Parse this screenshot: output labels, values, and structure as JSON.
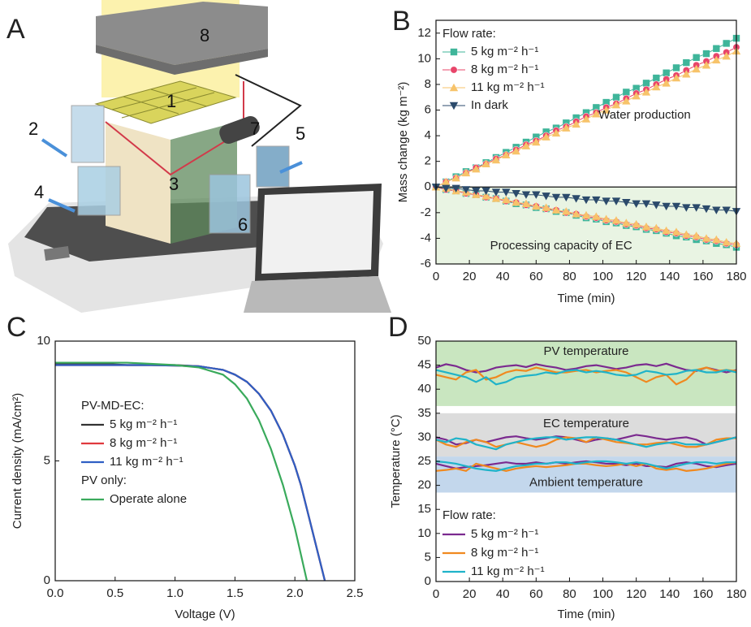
{
  "illustration": {
    "panel_label": "A",
    "callouts": [
      "1",
      "2",
      "3",
      "4",
      "5",
      "6",
      "7",
      "8"
    ]
  },
  "chart_data": [
    {
      "type": "line",
      "panel_label": "B",
      "x_label": "Time (min)",
      "y_label": "Mass change (kg m⁻²)",
      "xlim": [
        0,
        180
      ],
      "ylim": [
        -6,
        13
      ],
      "xticks": [
        0,
        20,
        40,
        60,
        80,
        100,
        120,
        140,
        160,
        180
      ],
      "yticks": [
        -6,
        -4,
        -2,
        0,
        2,
        4,
        6,
        8,
        10,
        12
      ],
      "zero_line": true,
      "negative_fill": "#e9f4e3",
      "legend_title": "Flow rate:",
      "annotations": [
        {
          "text": "Water production",
          "x": 125,
          "y": 5.6
        },
        {
          "text": "Processing capacity of EC",
          "x": 75,
          "y": -4.6
        }
      ],
      "x": [
        0,
        6,
        12,
        18,
        24,
        30,
        36,
        42,
        48,
        54,
        60,
        66,
        72,
        78,
        84,
        90,
        96,
        102,
        108,
        114,
        120,
        126,
        132,
        138,
        144,
        150,
        156,
        162,
        168,
        174,
        180
      ],
      "series": [
        {
          "name": "5 kg m⁻² h⁻¹",
          "color": "#3fb59a",
          "marker": "square",
          "values": [
            0,
            0.4,
            0.8,
            1.2,
            1.5,
            1.9,
            2.3,
            2.7,
            3.1,
            3.5,
            3.9,
            4.3,
            4.6,
            5.0,
            5.4,
            5.8,
            6.2,
            6.6,
            7.0,
            7.4,
            7.7,
            8.1,
            8.5,
            8.9,
            9.3,
            9.7,
            10.1,
            10.4,
            10.8,
            11.2,
            11.6
          ],
          "values_ec": [
            0,
            -0.2,
            -0.3,
            -0.5,
            -0.6,
            -0.8,
            -0.9,
            -1.1,
            -1.3,
            -1.4,
            -1.6,
            -1.7,
            -1.9,
            -2.0,
            -2.2,
            -2.4,
            -2.5,
            -2.7,
            -2.8,
            -3.0,
            -3.1,
            -3.3,
            -3.4,
            -3.6,
            -3.8,
            -3.9,
            -4.1,
            -4.2,
            -4.4,
            -4.5,
            -4.7
          ]
        },
        {
          "name": "8 kg m⁻² h⁻¹",
          "color": "#e8456a",
          "marker": "circle",
          "values": [
            0,
            0.4,
            0.7,
            1.1,
            1.5,
            1.8,
            2.2,
            2.5,
            2.9,
            3.3,
            3.6,
            4.0,
            4.4,
            4.7,
            5.1,
            5.5,
            5.8,
            6.2,
            6.5,
            6.9,
            7.3,
            7.6,
            8.0,
            8.4,
            8.7,
            9.1,
            9.5,
            9.8,
            10.2,
            10.5,
            10.9
          ],
          "values_ec": [
            0,
            -0.2,
            -0.3,
            -0.5,
            -0.6,
            -0.8,
            -0.9,
            -1.1,
            -1.2,
            -1.4,
            -1.5,
            -1.7,
            -1.8,
            -2.0,
            -2.1,
            -2.3,
            -2.4,
            -2.6,
            -2.7,
            -2.9,
            -3.0,
            -3.2,
            -3.3,
            -3.5,
            -3.6,
            -3.8,
            -3.9,
            -4.1,
            -4.2,
            -4.4,
            -4.5
          ]
        },
        {
          "name": "11 kg m⁻² h⁻¹",
          "color": "#f7c36a",
          "marker": "triangle-up",
          "values": [
            0,
            0.4,
            0.7,
            1.1,
            1.4,
            1.8,
            2.1,
            2.5,
            2.8,
            3.2,
            3.5,
            3.9,
            4.2,
            4.6,
            4.9,
            5.3,
            5.7,
            6.0,
            6.4,
            6.7,
            7.1,
            7.4,
            7.8,
            8.1,
            8.5,
            8.8,
            9.2,
            9.5,
            9.9,
            10.2,
            10.6
          ],
          "values_ec": [
            0,
            -0.1,
            -0.3,
            -0.4,
            -0.6,
            -0.7,
            -0.9,
            -1.0,
            -1.2,
            -1.3,
            -1.5,
            -1.6,
            -1.8,
            -1.9,
            -2.1,
            -2.2,
            -2.3,
            -2.5,
            -2.6,
            -2.8,
            -2.9,
            -3.1,
            -3.2,
            -3.4,
            -3.5,
            -3.7,
            -3.8,
            -4.0,
            -4.1,
            -4.3,
            -4.4
          ]
        },
        {
          "name": "In dark",
          "color": "#2b4a6b",
          "marker": "triangle-down",
          "values_ec": [
            0,
            -0.1,
            -0.1,
            -0.2,
            -0.3,
            -0.3,
            -0.4,
            -0.4,
            -0.5,
            -0.6,
            -0.6,
            -0.7,
            -0.8,
            -0.8,
            -0.9,
            -1.0,
            -1.0,
            -1.1,
            -1.1,
            -1.2,
            -1.3,
            -1.3,
            -1.4,
            -1.5,
            -1.5,
            -1.6,
            -1.6,
            -1.7,
            -1.8,
            -1.8,
            -1.9
          ]
        }
      ]
    },
    {
      "type": "line",
      "panel_label": "C",
      "x_label": "Voltage (V)",
      "y_label": "Current density (mA/cm²)",
      "xlim": [
        0,
        2.5
      ],
      "ylim": [
        0,
        10
      ],
      "xticks": [
        {
          "value": 0,
          "label": "0.0"
        },
        0.5,
        {
          "value": 1,
          "label": "1.0"
        },
        1.5,
        {
          "value": 2,
          "label": "2.0"
        },
        2.5
      ],
      "yticks": [
        0,
        5,
        10
      ],
      "x": [
        0,
        0.2,
        0.4,
        0.6,
        0.8,
        1.0,
        1.2,
        1.4,
        1.5,
        1.6,
        1.7,
        1.8,
        1.9,
        2.0,
        2.05,
        2.1,
        2.15,
        2.2,
        2.25
      ],
      "series_groups": [
        {
          "title": "PV-MD-EC:",
          "series": [
            {
              "name": "5 kg m⁻² h⁻¹",
              "color": "#333333",
              "values": [
                9.05,
                9.05,
                9.05,
                9.0,
                9.0,
                9.0,
                8.95,
                8.8,
                8.6,
                8.3,
                7.8,
                7.1,
                6.1,
                4.8,
                4.0,
                3.0,
                2.0,
                1.0,
                0
              ]
            },
            {
              "name": "8 kg m⁻² h⁻¹",
              "color": "#e0393e",
              "values": [
                9.0,
                9.0,
                9.0,
                9.0,
                9.0,
                8.98,
                8.95,
                8.8,
                8.6,
                8.3,
                7.8,
                7.1,
                6.1,
                4.8,
                4.0,
                3.0,
                2.0,
                1.0,
                0
              ]
            },
            {
              "name": "11 kg m⁻² h⁻¹",
              "color": "#2f5fc4",
              "values": [
                9.0,
                9.0,
                9.0,
                9.0,
                9.0,
                8.98,
                8.95,
                8.8,
                8.6,
                8.3,
                7.8,
                7.1,
                6.1,
                4.8,
                4.0,
                3.0,
                2.0,
                1.0,
                0
              ]
            }
          ]
        },
        {
          "title": "PV only:",
          "series": [
            {
              "name": "Operate alone",
              "color": "#3aaa5c",
              "values": [
                9.1,
                9.1,
                9.1,
                9.1,
                9.05,
                9.0,
                8.9,
                8.6,
                8.2,
                7.6,
                6.7,
                5.5,
                4.0,
                2.2,
                1.1,
                0,
                null,
                null,
                null
              ]
            }
          ]
        }
      ]
    },
    {
      "type": "line",
      "panel_label": "D",
      "x_label": "Time (min)",
      "y_label": "Temperature (°C)",
      "xlim": [
        0,
        180
      ],
      "ylim": [
        0,
        50
      ],
      "xticks": [
        0,
        20,
        40,
        60,
        80,
        100,
        120,
        140,
        160,
        180
      ],
      "yticks": [
        0,
        5,
        10,
        15,
        20,
        25,
        30,
        35,
        40,
        45,
        50
      ],
      "legend_title": "Flow rate:",
      "bands": [
        {
          "label": "PV temperature",
          "range": [
            36.5,
            50
          ],
          "color": "#c9e6c0"
        },
        {
          "label": "EC temperature",
          "range": [
            26,
            35
          ],
          "color": "#dcdcdc"
        },
        {
          "label": "Ambient temperature",
          "range": [
            18.5,
            26
          ],
          "color": "#c3d7ec"
        }
      ],
      "x": [
        0,
        6,
        12,
        18,
        24,
        30,
        36,
        42,
        48,
        54,
        60,
        66,
        72,
        78,
        84,
        90,
        96,
        102,
        108,
        114,
        120,
        126,
        132,
        138,
        144,
        150,
        156,
        162,
        168,
        174,
        180
      ],
      "series": [
        {
          "name": "5 kg m⁻² h⁻¹",
          "color": "#7b2a8f",
          "values_pv": [
            44.5,
            45.2,
            44.8,
            44.0,
            43.5,
            43.8,
            44.5,
            44.8,
            45.0,
            44.6,
            45.2,
            44.8,
            44.5,
            44.0,
            44.3,
            44.8,
            45.0,
            44.6,
            44.2,
            44.5,
            45.0,
            45.2,
            44.8,
            45.3,
            44.6,
            44.0,
            43.8,
            44.5,
            44.0,
            43.5,
            44.0
          ],
          "values_ec": [
            30.0,
            29.5,
            28.5,
            28.8,
            29.5,
            29.0,
            29.5,
            30.0,
            30.2,
            29.8,
            29.5,
            29.8,
            30.2,
            30.0,
            29.5,
            29.0,
            29.5,
            29.8,
            29.5,
            30.0,
            30.5,
            30.2,
            29.8,
            29.5,
            29.8,
            30.0,
            29.5,
            28.5,
            29.0,
            29.5,
            30.0
          ],
          "values_ambient": [
            24.5,
            24.0,
            23.5,
            23.8,
            24.0,
            24.2,
            24.5,
            24.8,
            24.5,
            24.5,
            24.8,
            24.5,
            24.8,
            24.5,
            24.8,
            25.0,
            24.8,
            24.5,
            24.5,
            24.2,
            24.5,
            24.0,
            24.0,
            23.8,
            24.5,
            24.8,
            24.5,
            24.0,
            23.8,
            24.2,
            24.5
          ]
        },
        {
          "name": "8 kg m⁻² h⁻¹",
          "color": "#f0891f",
          "values_pv": [
            43.0,
            42.5,
            42.0,
            43.5,
            44.0,
            42.0,
            42.5,
            43.5,
            44.0,
            43.8,
            44.5,
            44.0,
            43.5,
            43.5,
            43.8,
            44.0,
            43.5,
            43.8,
            44.0,
            43.5,
            42.5,
            41.5,
            42.5,
            43.0,
            41.0,
            42.0,
            44.0,
            44.5,
            43.8,
            44.0,
            43.8
          ],
          "values_ec": [
            29.5,
            28.5,
            28.0,
            29.0,
            29.5,
            29.0,
            28.0,
            28.5,
            29.0,
            28.5,
            28.0,
            28.5,
            29.5,
            30.0,
            29.8,
            29.0,
            30.0,
            29.5,
            29.0,
            28.8,
            28.5,
            28.5,
            28.8,
            29.0,
            28.5,
            28.0,
            28.0,
            28.5,
            29.5,
            29.8,
            29.8
          ],
          "values_ambient": [
            23.0,
            23.2,
            23.5,
            23.0,
            24.5,
            24.0,
            23.5,
            23.0,
            23.5,
            23.8,
            24.0,
            23.8,
            24.0,
            24.2,
            24.5,
            24.5,
            24.2,
            24.0,
            24.2,
            24.5,
            24.0,
            24.5,
            23.5,
            23.2,
            23.5,
            23.0,
            23.2,
            23.5,
            24.0,
            24.5,
            24.8
          ]
        },
        {
          "name": "11 kg m⁻² h⁻¹",
          "color": "#1fb3c9",
          "values_pv": [
            44.0,
            43.5,
            43.0,
            42.5,
            41.5,
            42.5,
            41.0,
            41.5,
            42.5,
            42.8,
            43.0,
            43.5,
            43.2,
            43.8,
            44.0,
            43.5,
            43.8,
            43.5,
            43.0,
            42.8,
            43.0,
            43.8,
            43.5,
            43.0,
            43.2,
            43.8,
            44.0,
            43.5,
            43.5,
            44.0,
            43.5
          ],
          "values_ec": [
            29.5,
            29.0,
            29.8,
            29.5,
            28.5,
            28.0,
            27.5,
            28.5,
            29.0,
            29.5,
            29.8,
            30.0,
            30.0,
            29.5,
            29.8,
            30.0,
            30.0,
            29.8,
            29.5,
            29.0,
            28.5,
            28.0,
            28.5,
            28.8,
            29.0,
            28.5,
            28.5,
            28.5,
            29.0,
            29.5,
            30.0
          ],
          "values_ambient": [
            25.0,
            24.8,
            24.5,
            24.0,
            23.5,
            23.2,
            23.0,
            23.5,
            24.0,
            24.2,
            24.5,
            24.5,
            24.8,
            24.8,
            24.5,
            24.8,
            25.0,
            25.0,
            24.8,
            24.5,
            24.8,
            24.5,
            24.0,
            23.5,
            24.0,
            24.5,
            24.8,
            24.8,
            24.5,
            24.8,
            24.8
          ]
        }
      ]
    }
  ]
}
